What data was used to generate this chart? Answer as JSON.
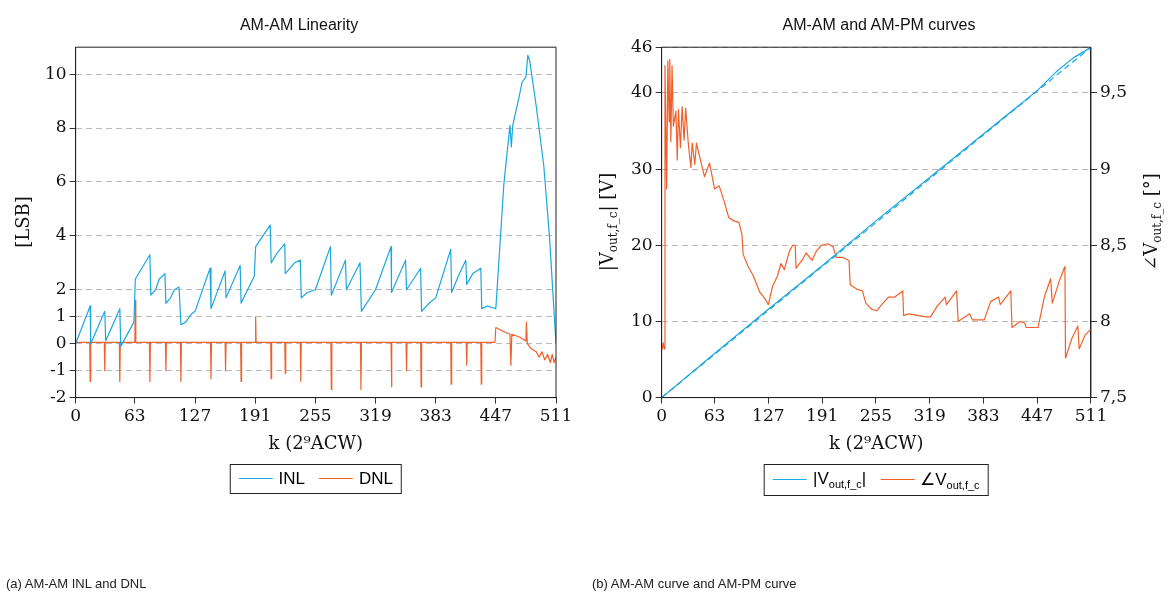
{
  "chart_data": [
    {
      "type": "line",
      "title": "AM-AM Linearity",
      "xlabel": "k (2⁹ACW)",
      "ylabel": "[LSB]",
      "xlim": [
        0,
        511
      ],
      "xticks": [
        0,
        63,
        127,
        191,
        255,
        319,
        383,
        447,
        511
      ],
      "ylim": [
        -2,
        11
      ],
      "yticks": [
        -2,
        -1,
        0,
        1,
        2,
        4,
        6,
        8,
        10
      ],
      "grid": "y",
      "legend": "bottom",
      "annotations": [
        "(a) AM-AM INL and DNL"
      ],
      "series": [
        {
          "name": "INL",
          "color": "#1ba7e0",
          "x": [
            0,
            15.5,
            16,
            31,
            32,
            47,
            48,
            62,
            63.5,
            79,
            80,
            85,
            89,
            95,
            96,
            101,
            105,
            110,
            112,
            117,
            123,
            127,
            143,
            144,
            159,
            160,
            175,
            176,
            190,
            191.5,
            207,
            208,
            215,
            222.5,
            223,
            233,
            239,
            240,
            246.5,
            255,
            271,
            272,
            287,
            288,
            302.5,
            304,
            319,
            335.5,
            336,
            351,
            352,
            367,
            368,
            376,
            383,
            399,
            400,
            407,
            415,
            416,
            422.5,
            431,
            432,
            438,
            447,
            455.5,
            462,
            463.5,
            465,
            472,
            475,
            479,
            481,
            483,
            490,
            498,
            504,
            511
          ],
          "values": [
            0,
            1.4,
            0,
            1.2,
            0.1,
            1.3,
            -0.1,
            0.8,
            2.4,
            3.3,
            1.8,
            2.0,
            2.4,
            2.6,
            1.5,
            1.7,
            2.0,
            2.1,
            0.7,
            0.8,
            1.1,
            1.2,
            2.8,
            1.3,
            2.7,
            1.7,
            2.9,
            1.5,
            2.5,
            3.6,
            4.4,
            3.0,
            3.4,
            3.7,
            2.6,
            3.0,
            3.1,
            1.7,
            1.9,
            2.0,
            3.6,
            1.8,
            3.1,
            2.0,
            3.0,
            1.2,
            2.0,
            3.6,
            1.9,
            3.1,
            2.0,
            2.8,
            1.2,
            1.5,
            1.7,
            3.5,
            1.9,
            2.5,
            3.1,
            2.2,
            2.6,
            2.8,
            1.3,
            1.4,
            1.3,
            5.9,
            8.1,
            7.3,
            8.1,
            9.2,
            9.7,
            9.9,
            10.7,
            10.5,
            8.8,
            6.6,
            4.0,
            0
          ]
        },
        {
          "name": "DNL",
          "color": "#f0602a",
          "x": [
            0,
            15,
            15.5,
            16,
            30.5,
            31,
            31.5,
            46.5,
            47,
            47.5,
            63,
            63.5,
            64,
            78.5,
            79,
            79.5,
            95.5,
            96,
            96.5,
            111.5,
            112,
            112.5,
            143.5,
            144,
            144.5,
            159,
            159.5,
            160,
            175.5,
            176,
            176.5,
            191,
            191.5,
            192,
            207.5,
            208,
            208.5,
            222.5,
            223,
            223.5,
            239,
            239.5,
            240,
            271.5,
            272,
            272.5,
            303,
            303.5,
            304,
            335.5,
            336,
            336.5,
            351.5,
            352,
            352.5,
            367,
            367.5,
            368,
            399,
            399.5,
            400,
            415.5,
            416,
            416.5,
            431,
            431.5,
            432,
            446,
            447,
            455,
            462,
            463,
            464,
            472,
            479,
            479.5,
            480.5,
            485,
            490,
            493,
            496,
            499,
            502,
            505,
            507,
            509,
            511
          ],
          "values": [
            0.05,
            0.05,
            -1.4,
            0.05,
            0.05,
            -1.0,
            0.05,
            0.05,
            -1.4,
            0.05,
            0.05,
            1.6,
            0.05,
            0.05,
            -1.4,
            0.05,
            0.05,
            -1.0,
            0.05,
            0.05,
            -1.4,
            0.05,
            0.05,
            -1.3,
            0.05,
            0.05,
            -1.0,
            0.05,
            0.05,
            -1.4,
            0.05,
            0.05,
            1.0,
            0.05,
            0.05,
            -1.3,
            0.05,
            0.05,
            -1.1,
            0.05,
            0.05,
            -1.4,
            0.05,
            0.05,
            -1.7,
            0.05,
            0.05,
            -1.7,
            0.05,
            0.05,
            -1.6,
            0.05,
            0.05,
            -1.0,
            0.05,
            0.05,
            -1.6,
            0.05,
            0.05,
            -1.5,
            0.05,
            0.05,
            -0.8,
            0.05,
            0.05,
            -1.5,
            0.05,
            0.05,
            0.6,
            0.45,
            0.35,
            -0.8,
            0.35,
            0.25,
            0.1,
            0.8,
            0.0,
            -0.2,
            -0.3,
            -0.5,
            -0.3,
            -0.6,
            -0.4,
            -0.7,
            -0.4,
            -0.7,
            -0.5
          ]
        }
      ]
    },
    {
      "type": "line",
      "title": "AM-AM and AM-PM curves",
      "xlabel": "k (2⁹ACW)",
      "ylabel": "|V$_{out,f_c}$| [V]",
      "y2label": "∠V$_{out,f_c}$ [°]",
      "xlim": [
        0,
        511
      ],
      "xticks": [
        0,
        63,
        127,
        191,
        255,
        319,
        383,
        447,
        511
      ],
      "ylim": [
        0,
        46
      ],
      "yticks": [
        0,
        10,
        20,
        30,
        40,
        46
      ],
      "y2lim": [
        7.5,
        9.8
      ],
      "y2ticks": [
        {
          "value": 7.5,
          "label": "7,5"
        },
        8,
        {
          "value": 8.5,
          "label": "8,5"
        },
        9,
        {
          "value": 9.5,
          "label": "9,5"
        }
      ],
      "grid": "y",
      "legend": "bottom",
      "annotations": [
        "(b) AM-AM curve and AM-PM curve"
      ],
      "series": [
        {
          "name": "|V$_{out,f_c}$|",
          "color": "#1ba7e0",
          "x": [
            0,
            63,
            127,
            191,
            255,
            319,
            383,
            447,
            470,
            490,
            511
          ],
          "values": [
            0,
            5.8,
            11.6,
            17.3,
            23.2,
            28.9,
            34.6,
            40.3,
            42.8,
            44.6,
            46
          ]
        },
        {
          "color": "#1ba7e0",
          "line_style": "dashed",
          "x": [
            0,
            511
          ],
          "values": [
            0,
            46
          ]
        },
        {
          "name": "∠V$_{out,f_c}$",
          "color": "#f0602a",
          "axis": "y2",
          "x": [
            0,
            2,
            3,
            4,
            6,
            7.4,
            9,
            9.7,
            11,
            12.4,
            14,
            17,
            18.6,
            20,
            22.4,
            24.4,
            26.7,
            28.6,
            31.7,
            34.8,
            36.4,
            39.5,
            41.4,
            45.3,
            51,
            57,
            63,
            68.5,
            74.3,
            80,
            86,
            92,
            95.6,
            97,
            103,
            109,
            117,
            123,
            127,
            132,
            138,
            142,
            146,
            152,
            156,
            159,
            160,
            167,
            172,
            179,
            184,
            190,
            198,
            204,
            208,
            215.5,
            223,
            224.5,
            233,
            239,
            243,
            250,
            256,
            262,
            270,
            277.5,
            287,
            288,
            295,
            304.5,
            314,
            320,
            328,
            337.5,
            339,
            351,
            353,
            366.5,
            370,
            384,
            391.6,
            401,
            403,
            415.6,
            417,
            426.5,
            432,
            434,
            448,
            455.5,
            463,
            465,
            473,
            480,
            480.7,
            488.4,
            495.4,
            497,
            504,
            511
          ],
          "values": [
            7.81,
            7.86,
            7.82,
            9.68,
            8.87,
            9.71,
            9.31,
            9.72,
            9.18,
            9.68,
            9.28,
            9.38,
            9.06,
            9.39,
            9.14,
            9.41,
            9.19,
            9.4,
            9.17,
            9.01,
            9.17,
            9.03,
            9.17,
            9.08,
            8.95,
            9.04,
            8.87,
            8.89,
            8.79,
            8.68,
            8.66,
            8.65,
            8.57,
            8.44,
            8.36,
            8.3,
            8.19,
            8.15,
            8.11,
            8.23,
            8.3,
            8.38,
            8.34,
            8.46,
            8.5,
            8.5,
            8.35,
            8.4,
            8.45,
            8.4,
            8.46,
            8.5,
            8.51,
            8.49,
            8.42,
            8.42,
            8.4,
            8.24,
            8.21,
            8.2,
            8.12,
            8.08,
            8.07,
            8.11,
            8.16,
            8.16,
            8.2,
            8.04,
            8.05,
            8.04,
            8.03,
            8.03,
            8.1,
            8.16,
            8.11,
            8.2,
            8.0,
            8.05,
            8.01,
            8.01,
            8.13,
            8.16,
            8.11,
            8.2,
            7.96,
            8.0,
            7.99,
            7.96,
            7.96,
            8.16,
            8.28,
            8.12,
            8.26,
            8.36,
            7.76,
            7.89,
            7.97,
            7.82,
            7.91,
            7.95
          ]
        }
      ]
    }
  ]
}
